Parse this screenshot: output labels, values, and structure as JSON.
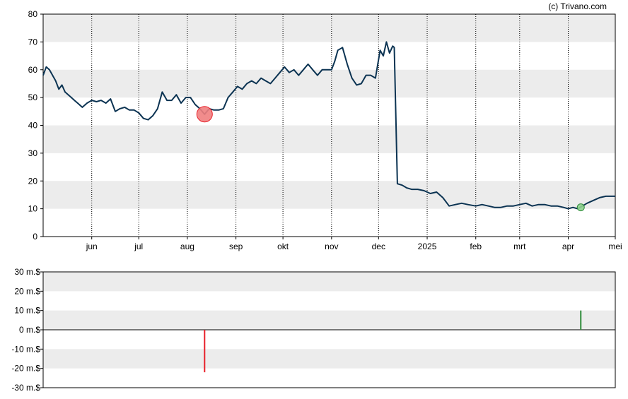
{
  "credit": "(c) Trivano.com",
  "colors": {
    "line": "#0b3352",
    "band": "#ececec",
    "sell": "#e8202a",
    "sell_marker": "#f08080",
    "buy": "#2e8b3a",
    "buy_marker": "#8fd18f",
    "axis": "#000000"
  },
  "chart_data": [
    {
      "type": "line",
      "title": "",
      "xlabel": "",
      "ylabel": "",
      "ylim": [
        0,
        80
      ],
      "yticks": [
        "0",
        "10",
        "20",
        "30",
        "40",
        "50",
        "60",
        "70",
        "80"
      ],
      "x_range": [
        "2024-05-01",
        "2025-05-01"
      ],
      "xticks": [
        {
          "label": "jun",
          "date": "2024-06-01"
        },
        {
          "label": "jul",
          "date": "2024-07-01"
        },
        {
          "label": "aug",
          "date": "2024-08-01"
        },
        {
          "label": "sep",
          "date": "2024-09-01"
        },
        {
          "label": "okt",
          "date": "2024-10-01"
        },
        {
          "label": "nov",
          "date": "2024-11-01"
        },
        {
          "label": "dec",
          "date": "2024-12-01"
        },
        {
          "label": "2025",
          "date": "2025-01-01"
        },
        {
          "label": "feb",
          "date": "2025-02-01"
        },
        {
          "label": "mrt",
          "date": "2025-03-01"
        },
        {
          "label": "apr",
          "date": "2025-04-01"
        },
        {
          "label": "mei",
          "date": "2025-05-01"
        }
      ],
      "grid": "vertical dotted lines at month ticks, alternating horizontal bands",
      "series": [
        {
          "points": [
            [
              "2024-05-01",
              58
            ],
            [
              "2024-05-03",
              61
            ],
            [
              "2024-05-05",
              60
            ],
            [
              "2024-05-07",
              58
            ],
            [
              "2024-05-09",
              56
            ],
            [
              "2024-05-11",
              53
            ],
            [
              "2024-05-13",
              54.5
            ],
            [
              "2024-05-15",
              52
            ],
            [
              "2024-05-17",
              51
            ],
            [
              "2024-05-19",
              50
            ],
            [
              "2024-05-21",
              49
            ],
            [
              "2024-05-23",
              48
            ],
            [
              "2024-05-26",
              46.5
            ],
            [
              "2024-05-29",
              48
            ],
            [
              "2024-06-01",
              49
            ],
            [
              "2024-06-04",
              48.5
            ],
            [
              "2024-06-07",
              49
            ],
            [
              "2024-06-10",
              48
            ],
            [
              "2024-06-13",
              49.5
            ],
            [
              "2024-06-16",
              45
            ],
            [
              "2024-06-19",
              46
            ],
            [
              "2024-06-22",
              46.5
            ],
            [
              "2024-06-25",
              45.5
            ],
            [
              "2024-06-28",
              45.5
            ],
            [
              "2024-07-01",
              44.5
            ],
            [
              "2024-07-04",
              42.5
            ],
            [
              "2024-07-07",
              42
            ],
            [
              "2024-07-10",
              43.5
            ],
            [
              "2024-07-13",
              46
            ],
            [
              "2024-07-16",
              52
            ],
            [
              "2024-07-19",
              49
            ],
            [
              "2024-07-22",
              49
            ],
            [
              "2024-07-25",
              51
            ],
            [
              "2024-07-28",
              48
            ],
            [
              "2024-07-31",
              50
            ],
            [
              "2024-08-03",
              50
            ],
            [
              "2024-08-06",
              47.5
            ],
            [
              "2024-08-09",
              46
            ],
            [
              "2024-08-12",
              44
            ],
            [
              "2024-08-15",
              46
            ],
            [
              "2024-08-18",
              45.5
            ],
            [
              "2024-08-21",
              45.5
            ],
            [
              "2024-08-24",
              46
            ],
            [
              "2024-08-27",
              50
            ],
            [
              "2024-08-30",
              52
            ],
            [
              "2024-09-02",
              54
            ],
            [
              "2024-09-05",
              53
            ],
            [
              "2024-09-08",
              55
            ],
            [
              "2024-09-11",
              56
            ],
            [
              "2024-09-14",
              55
            ],
            [
              "2024-09-17",
              57
            ],
            [
              "2024-09-20",
              56
            ],
            [
              "2024-09-23",
              55
            ],
            [
              "2024-09-26",
              57
            ],
            [
              "2024-09-29",
              59
            ],
            [
              "2024-10-02",
              61
            ],
            [
              "2024-10-05",
              59
            ],
            [
              "2024-10-08",
              60
            ],
            [
              "2024-10-11",
              58
            ],
            [
              "2024-10-14",
              60
            ],
            [
              "2024-10-17",
              62
            ],
            [
              "2024-10-20",
              60
            ],
            [
              "2024-10-23",
              58
            ],
            [
              "2024-10-26",
              60
            ],
            [
              "2024-10-29",
              60
            ],
            [
              "2024-11-01",
              60
            ],
            [
              "2024-11-03",
              63
            ],
            [
              "2024-11-05",
              67
            ],
            [
              "2024-11-08",
              68
            ],
            [
              "2024-11-11",
              62
            ],
            [
              "2024-11-14",
              57
            ],
            [
              "2024-11-17",
              54.5
            ],
            [
              "2024-11-20",
              55
            ],
            [
              "2024-11-23",
              58
            ],
            [
              "2024-11-26",
              58
            ],
            [
              "2024-11-29",
              57
            ],
            [
              "2024-12-02",
              67
            ],
            [
              "2024-12-04",
              65
            ],
            [
              "2024-12-06",
              70
            ],
            [
              "2024-12-08",
              66
            ],
            [
              "2024-12-10",
              68.5
            ],
            [
              "2024-12-11",
              68
            ],
            [
              "2024-12-13",
              19
            ],
            [
              "2024-12-16",
              18.5
            ],
            [
              "2024-12-19",
              17.5
            ],
            [
              "2024-12-22",
              17
            ],
            [
              "2024-12-26",
              17
            ],
            [
              "2024-12-30",
              16.5
            ],
            [
              "2025-01-03",
              15.5
            ],
            [
              "2025-01-07",
              16
            ],
            [
              "2025-01-11",
              14
            ],
            [
              "2025-01-15",
              11
            ],
            [
              "2025-01-19",
              11.5
            ],
            [
              "2025-01-23",
              12
            ],
            [
              "2025-01-27",
              11.5
            ],
            [
              "2025-02-01",
              11
            ],
            [
              "2025-02-05",
              11.5
            ],
            [
              "2025-02-09",
              11
            ],
            [
              "2025-02-13",
              10.5
            ],
            [
              "2025-02-17",
              10.5
            ],
            [
              "2025-02-21",
              11
            ],
            [
              "2025-02-25",
              11
            ],
            [
              "2025-03-01",
              11.5
            ],
            [
              "2025-03-05",
              12
            ],
            [
              "2025-03-09",
              11
            ],
            [
              "2025-03-13",
              11.5
            ],
            [
              "2025-03-17",
              11.5
            ],
            [
              "2025-03-21",
              11
            ],
            [
              "2025-03-25",
              11
            ],
            [
              "2025-03-29",
              10.5
            ],
            [
              "2025-04-01",
              10
            ],
            [
              "2025-04-04",
              10.5
            ],
            [
              "2025-04-07",
              10
            ],
            [
              "2025-04-10",
              11
            ],
            [
              "2025-04-13",
              12
            ],
            [
              "2025-04-17",
              13
            ],
            [
              "2025-04-21",
              14
            ],
            [
              "2025-04-25",
              14.5
            ],
            [
              "2025-05-01",
              14.5
            ]
          ]
        }
      ],
      "markers": [
        {
          "kind": "sell",
          "date": "2024-08-12",
          "value": 44
        },
        {
          "kind": "buy",
          "date": "2025-04-09",
          "value": 10.5
        }
      ]
    },
    {
      "type": "bar",
      "title": "",
      "xlabel": "",
      "ylabel": "",
      "ylim": [
        -30,
        30
      ],
      "yticks": [
        "-30 m.$",
        "-20 m.$",
        "-10 m.$",
        "0 m.$",
        "10 m.$",
        "20 m.$",
        "30 m.$"
      ],
      "bars": [
        {
          "kind": "sell",
          "date": "2024-08-12",
          "value": -22
        },
        {
          "kind": "buy",
          "date": "2025-04-09",
          "value": 10
        }
      ]
    }
  ]
}
